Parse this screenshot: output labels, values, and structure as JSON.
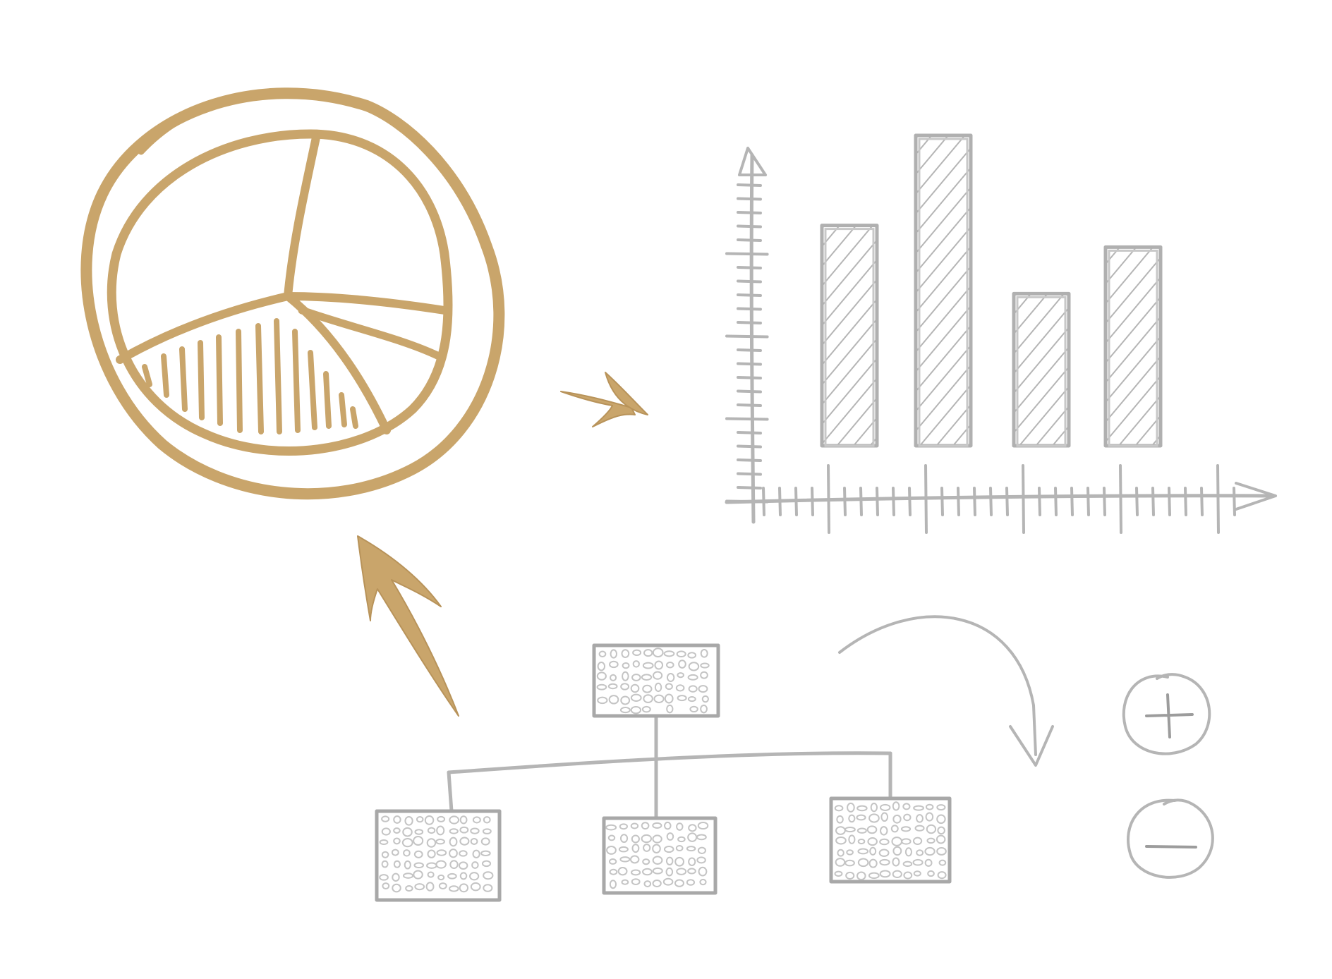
{
  "illustration": {
    "colors": {
      "accent": "#C9A56B",
      "sketch": "#B5B5B5",
      "background": "#FFFFFF"
    },
    "elements": [
      {
        "name": "pie-chart-sketch",
        "icon": "pie-chart-icon"
      },
      {
        "name": "arrow-right-icon",
        "icon": "arrow-right-icon"
      },
      {
        "name": "bar-chart-sketch",
        "icon": "bar-chart-icon"
      },
      {
        "name": "arrow-up-icon",
        "icon": "arrow-up-icon"
      },
      {
        "name": "org-chart-sketch",
        "icon": "hierarchy-icon"
      },
      {
        "name": "curved-arrow-icon",
        "icon": "curved-arrow-icon"
      },
      {
        "name": "plus-circle-icon",
        "icon": "plus-circle-icon"
      },
      {
        "name": "minus-circle-icon",
        "icon": "minus-circle-icon"
      }
    ],
    "bar_chart": {
      "bars": 4,
      "relative_values": [
        0.71,
        1.0,
        0.49,
        0.64
      ]
    }
  }
}
